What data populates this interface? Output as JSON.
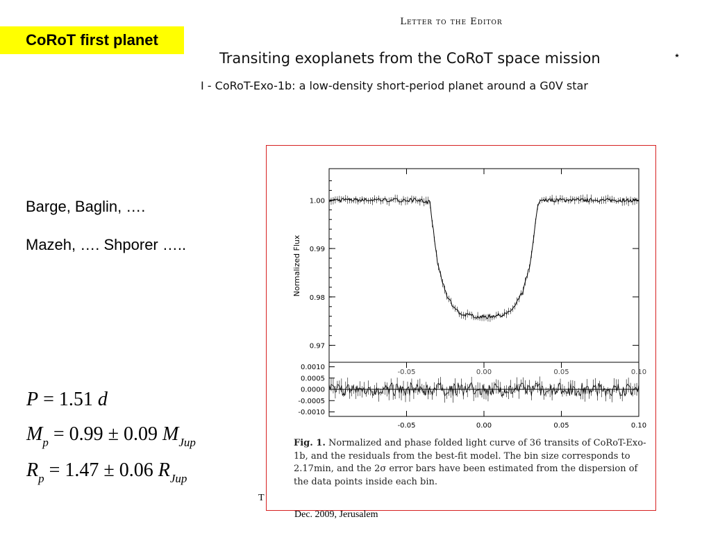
{
  "slide": {
    "title": "CoRoT first planet",
    "authors": [
      "Barge, Baglin, ….",
      "Mazeh, …. Shporer ….."
    ],
    "formulas": {
      "period": {
        "symbol": "P",
        "rhs": "= 1.51",
        "unit": "d"
      },
      "mass": {
        "symbol": "M",
        "sub": "p",
        "rhs": "= 0.99 ± 0.09",
        "unit": "M",
        "unit_sub": "Jup"
      },
      "radius": {
        "symbol": "R",
        "sub": "p",
        "rhs": "= 1.47 ± 0.06",
        "unit": "R",
        "unit_sub": "Jup"
      }
    },
    "footer_partial": "T",
    "footer": "Dec. 2009, Jerusalem"
  },
  "paper": {
    "letter_head": "Letter to the Editor",
    "title": "Transiting exoplanets from the CoRoT space mission",
    "star": "⋆",
    "subtitle": "I - CoRoT-Exo-1b: a low-density short-period planet around a G0V star"
  },
  "figure": {
    "caption_label": "Fig. 1.",
    "caption_text": "Normalized and phase folded light curve of 36 transits of CoRoT-Exo-1b, and the residuals from the best-fit model. The bin size corresponds to 2.17min, and the 2σ error bars have been estimated from the dispersion of the data points inside each bin.",
    "frame_color": "#d62020"
  },
  "chart_data": [
    {
      "type": "line",
      "title": "",
      "xlabel": "",
      "ylabel": "Normalized Flux",
      "xlim": [
        -0.1,
        0.1
      ],
      "ylim": [
        0.9665,
        1.0065
      ],
      "yticks": [
        "1.00",
        "0.99",
        "0.98",
        "0.97"
      ],
      "ytick_values": [
        1.0,
        0.99,
        0.98,
        0.97
      ],
      "xticks": [
        "-0.05",
        "0.00",
        "0.05",
        "0.10"
      ],
      "xtick_values": [
        -0.05,
        0.0,
        0.05,
        0.1
      ],
      "series": [
        {
          "x": [
            -0.1,
            -0.08,
            -0.06,
            -0.04,
            -0.035,
            -0.03,
            -0.025,
            -0.02,
            -0.015,
            -0.01,
            -0.005,
            0.0,
            0.005,
            0.01,
            0.015,
            0.02,
            0.025,
            0.03,
            0.035,
            0.04,
            0.06,
            0.08,
            0.1
          ],
          "y": [
            1.0,
            1.0,
            1.0,
            1.0,
            0.9995,
            0.987,
            0.981,
            0.978,
            0.9765,
            0.9762,
            0.976,
            0.9758,
            0.976,
            0.9762,
            0.9765,
            0.978,
            0.981,
            0.987,
            0.9995,
            1.0,
            1.0,
            1.0,
            1.0
          ]
        }
      ],
      "grid": false,
      "legend": "none"
    },
    {
      "type": "scatter",
      "title": "",
      "xlabel": "",
      "ylabel": "",
      "xlim": [
        -0.1,
        0.1
      ],
      "ylim": [
        -0.0012,
        0.0012
      ],
      "yticks": [
        "0.0010",
        "0.0005",
        "0.0000",
        "-0.0005",
        "-0.0010"
      ],
      "ytick_values": [
        0.001,
        0.0005,
        0.0,
        -0.0005,
        -0.001
      ],
      "xticks": [
        "-0.05",
        "0.00",
        "0.05",
        "0.10"
      ],
      "xtick_values": [
        -0.05,
        0.0,
        0.05,
        0.1
      ],
      "top_tick_labels": [
        "-0.05",
        "0.00",
        "0.05",
        "0.10"
      ],
      "residual_amplitude": 0.0003,
      "grid": false,
      "legend": "none"
    }
  ]
}
